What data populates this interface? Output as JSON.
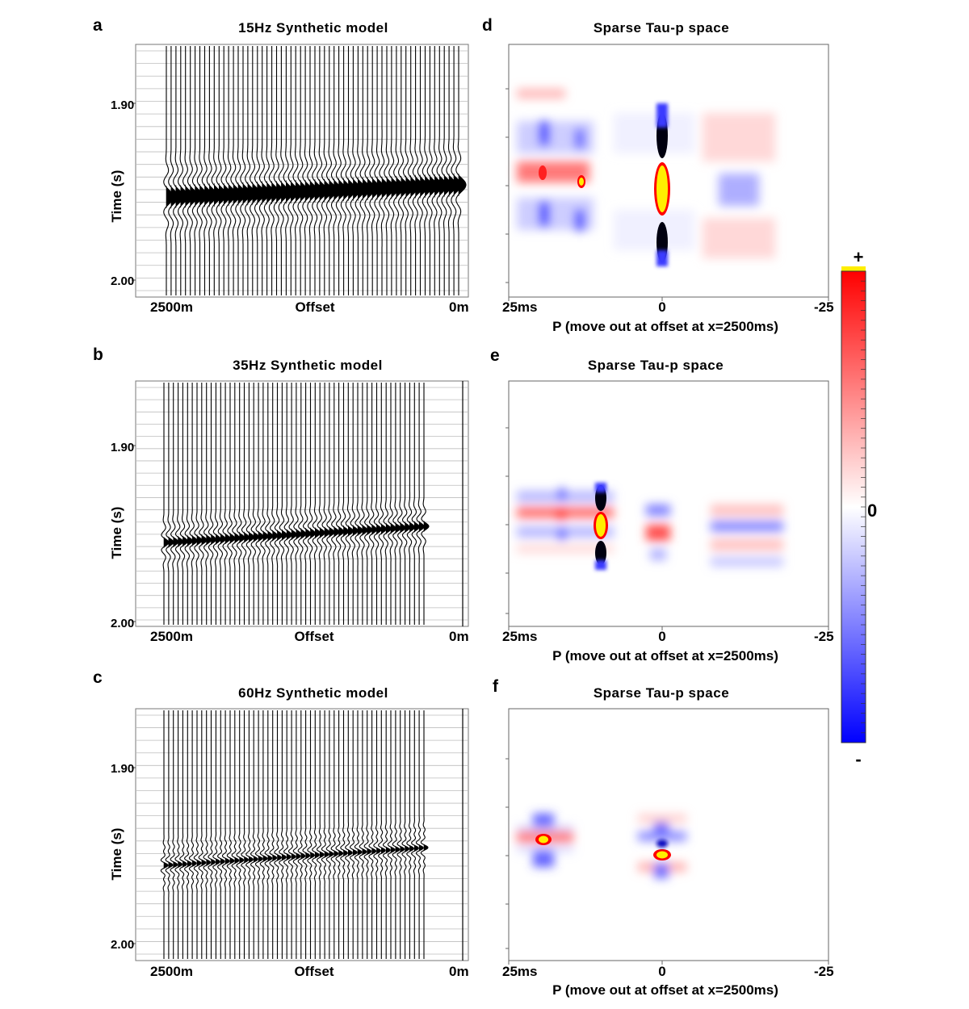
{
  "figure": {
    "colorbar": {
      "plus": "+",
      "zero": "0",
      "minus": "-"
    }
  },
  "panels_left": [
    {
      "id": "a",
      "letter": "a",
      "title": "15Hz Synthetic model",
      "ylabel": "Time (s)",
      "yticks": [
        "1.90",
        "2.00"
      ],
      "x_left": "2500m",
      "x_mid": "Offset",
      "x_right": "0m"
    },
    {
      "id": "b",
      "letter": "b",
      "title": "35Hz Synthetic model",
      "ylabel": "Time (s)",
      "yticks": [
        "1.90",
        "2.00"
      ],
      "x_left": "2500m",
      "x_mid": "Offset",
      "x_right": "0m"
    },
    {
      "id": "c",
      "letter": "c",
      "title": "60Hz Synthetic model",
      "ylabel": "Time (s)",
      "yticks": [
        "1.90",
        "2.00"
      ],
      "x_left": "2500m",
      "x_mid": "Offset",
      "x_right": "0m"
    }
  ],
  "panels_right": [
    {
      "id": "d",
      "letter": "d",
      "title": "Sparse Tau-p space",
      "x_left": "25ms",
      "x_mid": "0",
      "x_right": "-25",
      "xlabel": "P (move out at offset at x=2500ms)"
    },
    {
      "id": "e",
      "letter": "e",
      "title": "Sparse Tau-p space",
      "x_left": "25ms",
      "x_mid": "0",
      "x_right": "-25",
      "xlabel": "P (move out at offset at x=2500ms)"
    },
    {
      "id": "f",
      "letter": "f",
      "title": "Sparse Tau-p space",
      "x_left": "25ms",
      "x_mid": "0",
      "x_right": "-25",
      "xlabel": "P (move out at offset at x=2500ms)"
    }
  ]
}
